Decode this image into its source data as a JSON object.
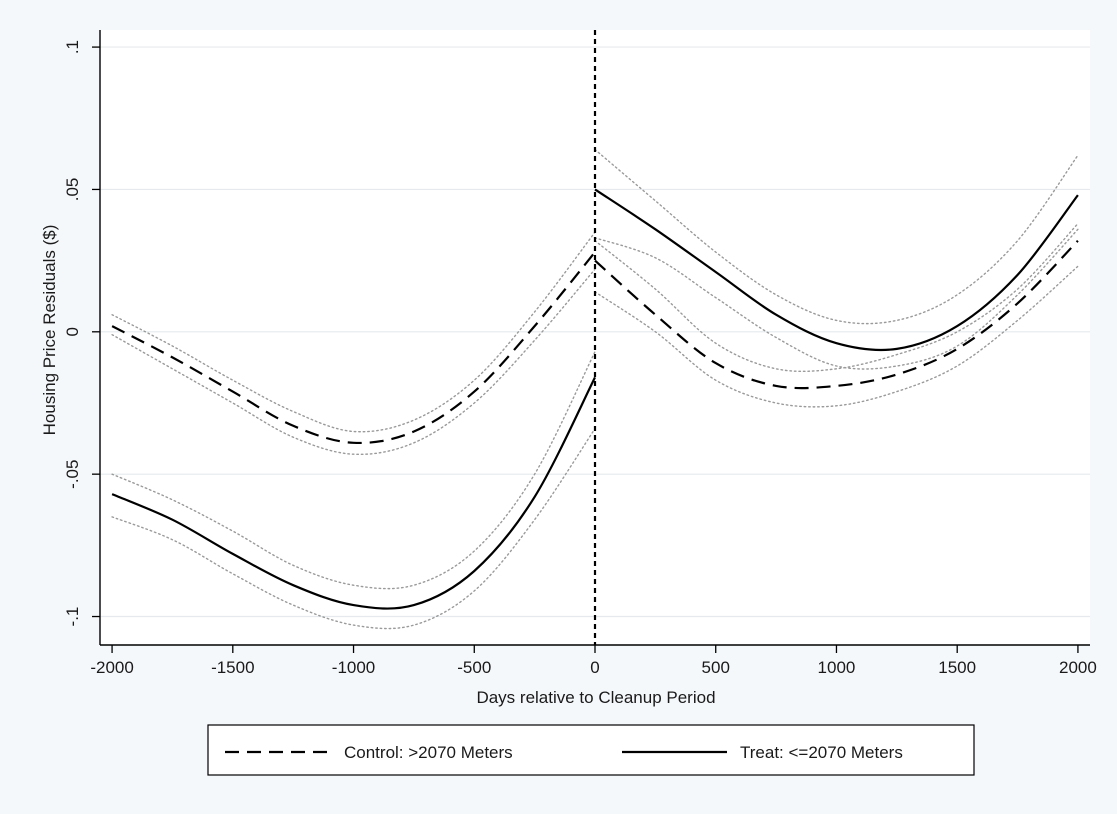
{
  "chart_data": {
    "type": "line",
    "xlabel": "Days relative to Cleanup Period",
    "ylabel": "Housing Price Residuals ($)",
    "xlim": [
      -2050,
      2050
    ],
    "ylim": [
      -0.11,
      0.106
    ],
    "x_ticks": [
      -2000,
      -1500,
      -1000,
      -500,
      0,
      500,
      1000,
      1500,
      2000
    ],
    "x_tick_labels": [
      "-2000",
      "-1500",
      "-1000",
      "-500",
      "0",
      "500",
      "1000",
      "1500",
      "2000"
    ],
    "y_ticks": [
      -0.1,
      -0.05,
      0,
      0.05,
      0.1
    ],
    "y_tick_labels": [
      "-.1",
      "-.05",
      "0",
      ".05",
      ".1"
    ],
    "grid": "horizontal",
    "vertical_reference_line": 0,
    "legend_position": "bottom",
    "series": [
      {
        "name": "Control: >2070 Meters",
        "style": "dashed",
        "color": "#000000",
        "segments": [
          {
            "x": [
              -2000,
              -1750,
              -1500,
              -1250,
              -1000,
              -750,
              -500,
              -250,
              0
            ],
            "y": [
              0.002,
              -0.009,
              -0.021,
              -0.033,
              -0.039,
              -0.035,
              -0.021,
              0.002,
              0.028
            ],
            "ci_upper": [
              0.006,
              -0.005,
              -0.017,
              -0.028,
              -0.035,
              -0.031,
              -0.017,
              0.007,
              0.035
            ],
            "ci_lower": [
              -0.001,
              -0.013,
              -0.025,
              -0.037,
              -0.043,
              -0.039,
              -0.025,
              -0.003,
              0.022
            ]
          },
          {
            "x": [
              0,
              250,
              500,
              750,
              1000,
              1250,
              1500,
              1750,
              2000
            ],
            "y": [
              0.025,
              0.006,
              -0.011,
              -0.019,
              -0.019,
              -0.015,
              -0.006,
              0.01,
              0.032
            ],
            "ci_upper": [
              0.032,
              0.015,
              -0.004,
              -0.013,
              -0.013,
              -0.008,
              0.0,
              0.015,
              0.038
            ],
            "ci_lower": [
              0.014,
              0.0,
              -0.017,
              -0.025,
              -0.026,
              -0.021,
              -0.012,
              0.004,
              0.023
            ]
          }
        ]
      },
      {
        "name": "Treat: <=2070 Meters",
        "style": "solid",
        "color": "#000000",
        "segments": [
          {
            "x": [
              -2000,
              -1750,
              -1500,
              -1250,
              -1000,
              -750,
              -500,
              -250,
              0
            ],
            "y": [
              -0.057,
              -0.066,
              -0.078,
              -0.089,
              -0.096,
              -0.096,
              -0.084,
              -0.058,
              -0.016
            ],
            "ci_upper": [
              -0.05,
              -0.059,
              -0.07,
              -0.082,
              -0.089,
              -0.089,
              -0.077,
              -0.05,
              -0.007
            ],
            "ci_lower": [
              -0.065,
              -0.073,
              -0.085,
              -0.096,
              -0.103,
              -0.103,
              -0.091,
              -0.066,
              -0.034
            ]
          },
          {
            "x": [
              0,
              250,
              500,
              750,
              1000,
              1250,
              1500,
              1750,
              2000
            ],
            "y": [
              0.05,
              0.036,
              0.021,
              0.006,
              -0.004,
              -0.006,
              0.002,
              0.02,
              0.048
            ],
            "ci_upper": [
              0.064,
              0.046,
              0.028,
              0.013,
              0.004,
              0.004,
              0.013,
              0.032,
              0.062
            ],
            "ci_lower": [
              0.033,
              0.026,
              0.012,
              -0.002,
              -0.012,
              -0.012,
              -0.005,
              0.013,
              0.036
            ]
          }
        ]
      }
    ]
  },
  "colors": {
    "background": "#f5f8fb",
    "plot_background": "#ffffff",
    "gridline": "#e6eaee",
    "ink": "#000000",
    "ci_line": "#9a9a9a"
  }
}
